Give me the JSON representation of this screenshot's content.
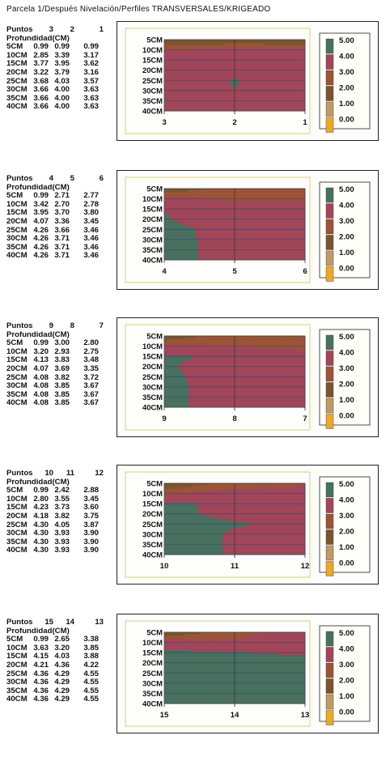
{
  "page_title": "Parcela 1/Después Nivelación/Perfiles TRANSVERSALES/KRIGEADO",
  "table_headers": {
    "points_label": "Puntos",
    "depth_label": "Profundidad(CM)"
  },
  "legend": {
    "levels": [
      "5.00",
      "4.00",
      "3.00",
      "2.00",
      "1.00",
      "0.00"
    ],
    "colors": [
      "#48705e",
      "#a04658",
      "#9a5436",
      "#7a5530",
      "#c09a66",
      "#e9a830"
    ]
  },
  "chart_data": [
    {
      "type": "heatmap",
      "points": [
        "3",
        "2",
        "1"
      ],
      "depths": [
        "5CM",
        "10CM",
        "15CM",
        "20CM",
        "25CM",
        "30CM",
        "35CM",
        "40CM"
      ],
      "values": [
        [
          "0.99",
          "0.99",
          "0.99"
        ],
        [
          "2.85",
          "3.39",
          "3.17"
        ],
        [
          "3.77",
          "3.95",
          "3.62"
        ],
        [
          "3.22",
          "3.79",
          "3.16"
        ],
        [
          "3.68",
          "4.03",
          "3.57"
        ],
        [
          "3.66",
          "4.00",
          "3.63"
        ],
        [
          "3.66",
          "4.00",
          "3.63"
        ],
        [
          "3.66",
          "4.00",
          "3.63"
        ]
      ],
      "ylabels": [
        "5CM",
        "10CM",
        "15CM",
        "20CM",
        "25CM",
        "30CM",
        "35CM",
        "40CM"
      ],
      "xticks": [
        "3",
        "2",
        "1"
      ]
    },
    {
      "type": "heatmap",
      "points": [
        "4",
        "5",
        "6"
      ],
      "depths": [
        "5CM",
        "10CM",
        "15CM",
        "20CM",
        "25CM",
        "30CM",
        "35CM",
        "40CM"
      ],
      "values": [
        [
          "0.99",
          "2.71",
          "2.77"
        ],
        [
          "3.42",
          "2.70",
          "2.78"
        ],
        [
          "3.95",
          "3.70",
          "3.80"
        ],
        [
          "4.07",
          "3.36",
          "3.45"
        ],
        [
          "4.26",
          "3.66",
          "3.46"
        ],
        [
          "4.26",
          "3.71",
          "3.46"
        ],
        [
          "4.26",
          "3.71",
          "3.46"
        ],
        [
          "4.26",
          "3.71",
          "3.46"
        ]
      ],
      "ylabels": [
        "5CM",
        "10CM",
        "15CM",
        "20CM",
        "25CM",
        "30CM",
        "35CM",
        "40CM"
      ],
      "xticks": [
        "4",
        "5",
        "6"
      ]
    },
    {
      "type": "heatmap",
      "points": [
        "9",
        "8",
        "7"
      ],
      "depths": [
        "5CM",
        "10CM",
        "15CM",
        "20CM",
        "25CM",
        "30CM",
        "35CM",
        "40CM"
      ],
      "values": [
        [
          "0.99",
          "3.00",
          "2.80"
        ],
        [
          "3.20",
          "2.93",
          "2.75"
        ],
        [
          "4.13",
          "3.83",
          "3.48"
        ],
        [
          "4.07",
          "3.69",
          "3.35"
        ],
        [
          "4.08",
          "3.82",
          "3.72"
        ],
        [
          "4.08",
          "3.85",
          "3.67"
        ],
        [
          "4.08",
          "3.85",
          "3.67"
        ],
        [
          "4.08",
          "3.85",
          "3.67"
        ]
      ],
      "ylabels": [
        "5CM",
        "10CM",
        "15CM",
        "20CM",
        "25CM",
        "30CM",
        "35CM",
        "40CM"
      ],
      "xticks": [
        "9",
        "8",
        "7"
      ]
    },
    {
      "type": "heatmap",
      "points": [
        "10",
        "11",
        "12"
      ],
      "depths": [
        "5CM",
        "10CM",
        "15CM",
        "20CM",
        "25CM",
        "30CM",
        "35CM",
        "40CM"
      ],
      "values": [
        [
          "0.99",
          "2.42",
          "2.88"
        ],
        [
          "2.80",
          "3.55",
          "3.45"
        ],
        [
          "4.23",
          "3.73",
          "3.60"
        ],
        [
          "4.18",
          "3.82",
          "3.75"
        ],
        [
          "4.30",
          "4.05",
          "3.87"
        ],
        [
          "4.30",
          "3.93",
          "3.90"
        ],
        [
          "4.30",
          "3.93",
          "3.90"
        ],
        [
          "4.30",
          "3.93",
          "3.90"
        ]
      ],
      "ylabels": [
        "5CM",
        "10CM",
        "15CM",
        "20CM",
        "25CM",
        "30CM",
        "35CM",
        "40CM"
      ],
      "xticks": [
        "10",
        "11",
        "12"
      ]
    },
    {
      "type": "heatmap",
      "points": [
        "15",
        "14",
        "13"
      ],
      "depths": [
        "5CM",
        "10CM",
        "15CM",
        "20CM",
        "25CM",
        "30CM",
        "35CM",
        "40CM"
      ],
      "values": [
        [
          "0.99",
          "2.65",
          "3.38"
        ],
        [
          "3.63",
          "3.20",
          "3.85"
        ],
        [
          "4.15",
          "4.03",
          "3.88"
        ],
        [
          "4.21",
          "4.36",
          "4.22"
        ],
        [
          "4.36",
          "4.29",
          "4.55"
        ],
        [
          "4.36",
          "4.29",
          "4.55"
        ],
        [
          "4.36",
          "4.29",
          "4.55"
        ],
        [
          "4.36",
          "4.29",
          "4.55"
        ]
      ],
      "ylabels": [
        "5CM",
        "10CM",
        "15CM",
        "20CM",
        "25CM",
        "30CM",
        "35CM",
        "40CM"
      ],
      "xticks": [
        "15",
        "14",
        "13"
      ]
    }
  ]
}
